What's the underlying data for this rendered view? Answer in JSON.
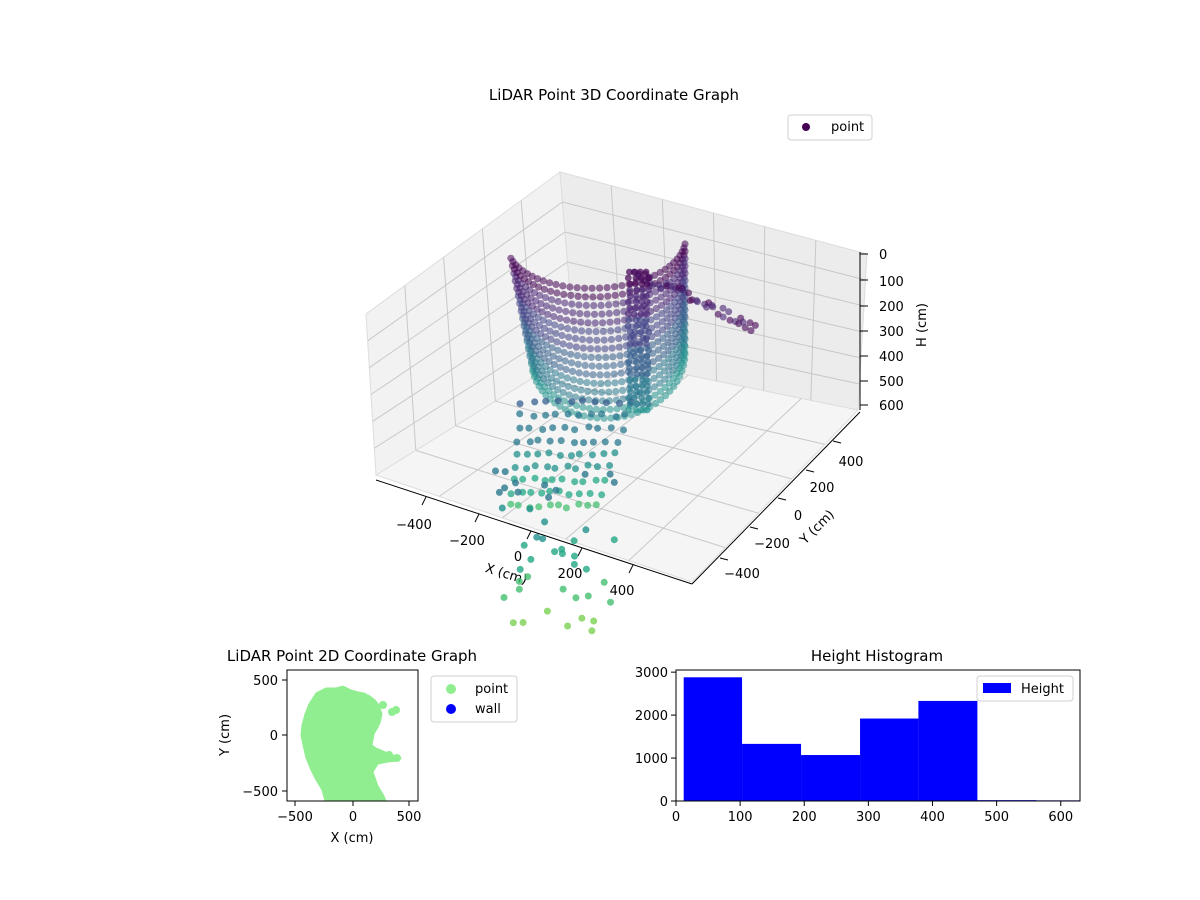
{
  "chart_data": [
    {
      "type": "scatter",
      "projection": "3d",
      "title": "LiDAR Point 3D Coordinate Graph",
      "xlabel": "X (cm)",
      "ylabel": "Y (cm)",
      "zlabel": "H (cm)",
      "xticks": [
        "−400",
        "−200",
        "0",
        "200",
        "400"
      ],
      "yticks": [
        "−400",
        "−200",
        "0",
        "200",
        "400"
      ],
      "zticks": [
        "0",
        "100",
        "200",
        "300",
        "400",
        "500",
        "600"
      ],
      "zlim": [
        0,
        600
      ],
      "z_axis_inverted": true,
      "colormap": "viridis",
      "grid": true,
      "legend": {
        "position": "top-right",
        "entries": [
          {
            "name": "point",
            "color": "#440154"
          }
        ]
      }
    },
    {
      "type": "scatter",
      "title": "LiDAR Point 2D Coordinate Graph",
      "xlabel": "X (cm)",
      "ylabel": "Y (cm)",
      "xticks": [
        "−500",
        "0",
        "500"
      ],
      "yticks": [
        "500",
        "0",
        "−500"
      ],
      "xlim": [
        -580,
        580
      ],
      "ylim": [
        -590,
        590
      ],
      "series": [
        {
          "name": "point",
          "color": "#90ee90"
        },
        {
          "name": "wall",
          "color": "#0000ff"
        }
      ],
      "legend": {
        "position": "outside-right"
      }
    },
    {
      "type": "bar",
      "title": "Height Histogram",
      "xticks": [
        "0",
        "100",
        "200",
        "300",
        "400",
        "500",
        "600"
      ],
      "yticks": [
        "0",
        "1000",
        "2000",
        "3000"
      ],
      "xlim": [
        0,
        630
      ],
      "ylim": [
        0,
        3050
      ],
      "bins": [
        {
          "x0": 12,
          "x1": 103,
          "count": 2880
        },
        {
          "x0": 103,
          "x1": 195,
          "count": 1330
        },
        {
          "x0": 195,
          "x1": 287,
          "count": 1070
        },
        {
          "x0": 287,
          "x1": 378,
          "count": 1920
        },
        {
          "x0": 378,
          "x1": 470,
          "count": 2330
        },
        {
          "x0": 470,
          "x1": 562,
          "count": 20
        },
        {
          "x0": 562,
          "x1": 630,
          "count": 15
        }
      ],
      "color": "#0000ff",
      "legend": {
        "position": "top-right",
        "entries": [
          {
            "name": "Height",
            "color": "#0000ff"
          }
        ]
      }
    }
  ]
}
